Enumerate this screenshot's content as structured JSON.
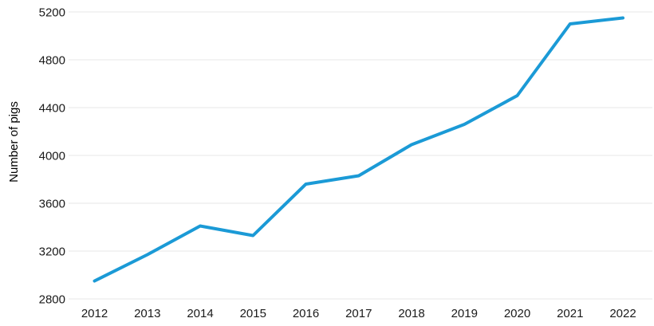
{
  "chart_data": {
    "type": "line",
    "categories": [
      "2012",
      "2013",
      "2014",
      "2015",
      "2016",
      "2017",
      "2018",
      "2019",
      "2020",
      "2021",
      "2022"
    ],
    "series": [
      {
        "name": "Number of pigs",
        "values": [
          2950,
          3170,
          3410,
          3330,
          3760,
          3830,
          4090,
          4260,
          4500,
          5100,
          5150
        ]
      }
    ],
    "title": "",
    "xlabel": "",
    "ylabel": "Number of pigs",
    "ylim": [
      2800,
      5200
    ],
    "yticks": [
      2800,
      3200,
      3600,
      4000,
      4400,
      4800,
      5200
    ],
    "grid": "horizontal-only",
    "legend_position": "none",
    "colors": {
      "line": "#1b9ad6",
      "grid": "#e7e7e7",
      "tick_text": "#1a1a1a",
      "axis_title_text": "#000000",
      "background": "#ffffff"
    }
  }
}
